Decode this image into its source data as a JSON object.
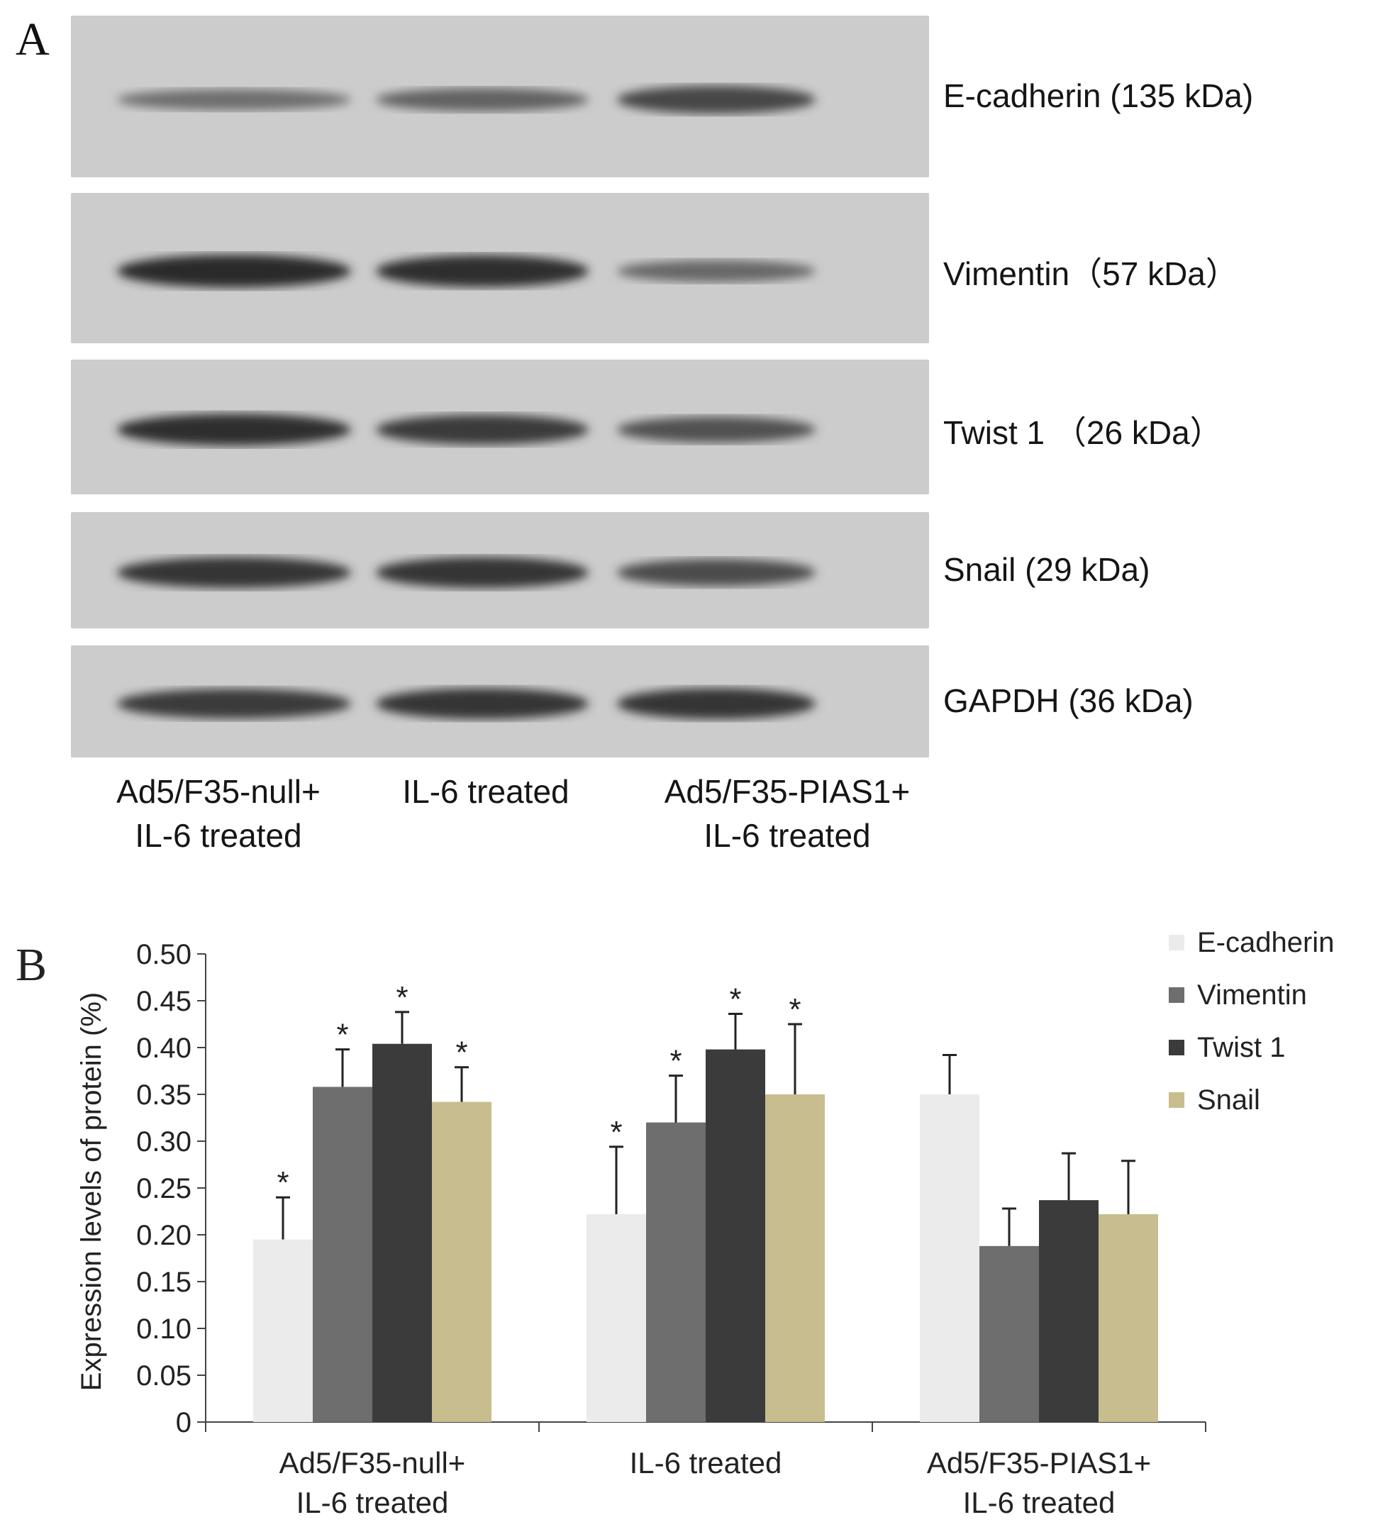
{
  "panel_a": {
    "letter": "A",
    "blots": [
      {
        "label": "E-cadherin (135 kDa)",
        "bands": [
          0.35,
          0.45,
          0.7
        ]
      },
      {
        "label": "Vimentin（57 kDa）",
        "bands": [
          0.95,
          0.9,
          0.4
        ]
      },
      {
        "label": "Twist 1 （26 kDa）",
        "bands": [
          0.9,
          0.8,
          0.6
        ]
      },
      {
        "label": "Snail (29 kDa)",
        "bands": [
          0.85,
          0.85,
          0.65
        ]
      },
      {
        "label": "GAPDH (36 kDa)",
        "bands": [
          0.8,
          0.85,
          0.85
        ]
      }
    ],
    "lanes": [
      {
        "line1": "Ad5/F35-null+",
        "line2": "IL-6 treated"
      },
      {
        "line1": "IL-6 treated",
        "line2": ""
      },
      {
        "line1": "Ad5/F35-PIAS1+",
        "line2": "IL-6 treated"
      }
    ]
  },
  "chart_data": {
    "type": "bar",
    "panel_letter": "B",
    "ylabel": "Expression levels of protein (%)",
    "ylim": [
      0,
      0.5
    ],
    "yticks": [
      "0",
      "0.05",
      "0.10",
      "0.15",
      "0.20",
      "0.25",
      "0.30",
      "0.35",
      "0.40",
      "0.45",
      "0.50"
    ],
    "categories": [
      [
        "Ad5/F35-null+",
        "IL-6 treated"
      ],
      [
        "IL-6 treated"
      ],
      [
        "Ad5/F35-PIAS1+",
        "IL-6 treated"
      ]
    ],
    "series": [
      {
        "name": "E-cadherin",
        "color": "#ebebeb",
        "values": [
          0.195,
          0.222,
          0.35
        ],
        "errors": [
          0.045,
          0.072,
          0.042
        ],
        "significant": [
          true,
          true,
          false
        ]
      },
      {
        "name": "Vimentin",
        "color": "#6e6e6e",
        "values": [
          0.358,
          0.32,
          0.188
        ],
        "errors": [
          0.04,
          0.05,
          0.04
        ],
        "significant": [
          true,
          true,
          false
        ]
      },
      {
        "name": "Twist 1",
        "color": "#3b3b3b",
        "values": [
          0.404,
          0.398,
          0.237
        ],
        "errors": [
          0.034,
          0.038,
          0.05
        ],
        "significant": [
          true,
          true,
          false
        ]
      },
      {
        "name": "Snail",
        "color": "#c8bd8e",
        "values": [
          0.342,
          0.35,
          0.222
        ],
        "errors": [
          0.037,
          0.075,
          0.057
        ],
        "significant": [
          true,
          true,
          false
        ]
      }
    ],
    "significance_marker": "*",
    "legend_position": "top-right"
  }
}
